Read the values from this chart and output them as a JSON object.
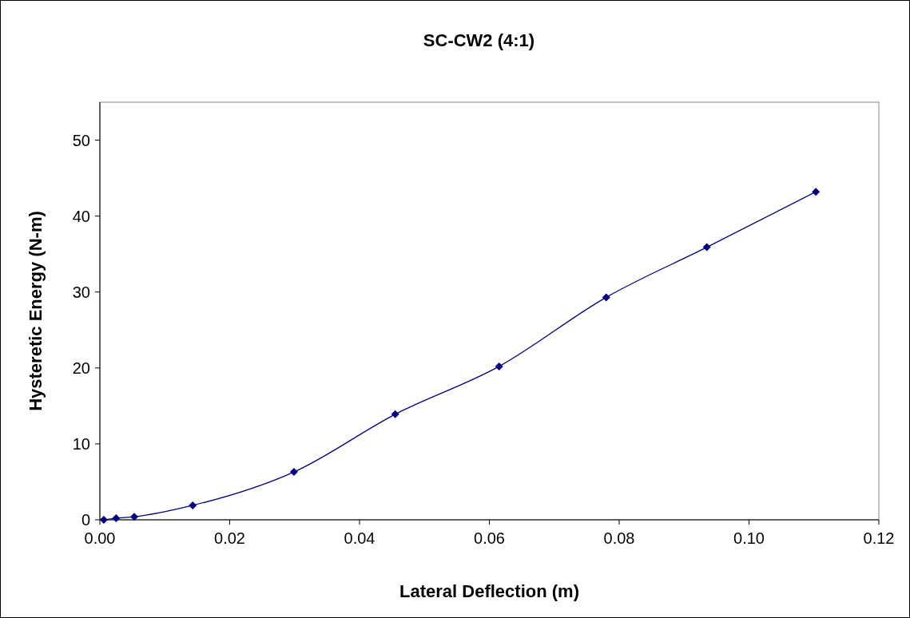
{
  "chart_data": {
    "type": "line",
    "title": "SC-CW2 (4:1)",
    "xlabel": "Lateral Deflection (m)",
    "ylabel": "Hysteretic Energy (N-m)",
    "x": [
      0.0006,
      0.0025,
      0.0053,
      0.0143,
      0.0299,
      0.0455,
      0.0615,
      0.078,
      0.0935,
      0.1103
    ],
    "series": [
      {
        "color": "#000080",
        "values": [
          0,
          0.2,
          0.4,
          1.9,
          6.3,
          13.9,
          20.2,
          29.3,
          35.9,
          43.2
        ]
      }
    ],
    "xlim": [
      0,
      0.12
    ],
    "xticks": [
      {
        "value": 0,
        "label": "0.00"
      },
      {
        "value": 0.02,
        "label": "0.02"
      },
      {
        "value": 0.04,
        "label": "0.04"
      },
      {
        "value": 0.06,
        "label": "0.06"
      },
      {
        "value": 0.08,
        "label": "0.08"
      },
      {
        "value": 0.1,
        "label": "0.10"
      },
      {
        "value": 0.12,
        "label": "0.12"
      }
    ],
    "ylim": [
      0,
      55
    ],
    "yticks": [
      0,
      10,
      20,
      30,
      40,
      50
    ],
    "marker": "diamond",
    "line_style": "solid",
    "grid": false
  }
}
